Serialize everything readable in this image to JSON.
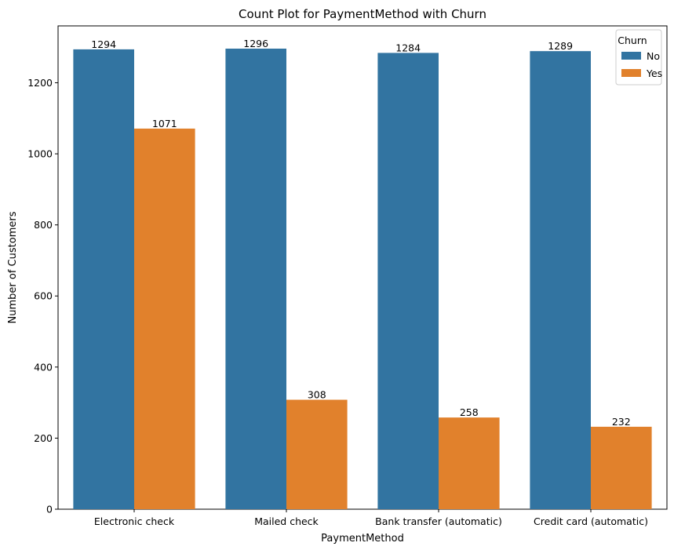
{
  "chart_data": {
    "type": "bar",
    "title": "Count Plot for PaymentMethod with Churn",
    "xlabel": "PaymentMethod",
    "ylabel": "Number of Customers",
    "categories": [
      "Electronic check",
      "Mailed check",
      "Bank transfer (automatic)",
      "Credit card (automatic)"
    ],
    "series": [
      {
        "name": "No",
        "color": "#3274a1",
        "values": [
          1294,
          1296,
          1284,
          1289
        ]
      },
      {
        "name": "Yes",
        "color": "#e1812c",
        "values": [
          1071,
          308,
          258,
          232
        ]
      }
    ],
    "ylim": [
      0,
      1360
    ],
    "yticks": [
      0,
      200,
      400,
      600,
      800,
      1000,
      1200
    ],
    "legend": {
      "title": "Churn",
      "placement": "top-right"
    },
    "grid": false
  }
}
